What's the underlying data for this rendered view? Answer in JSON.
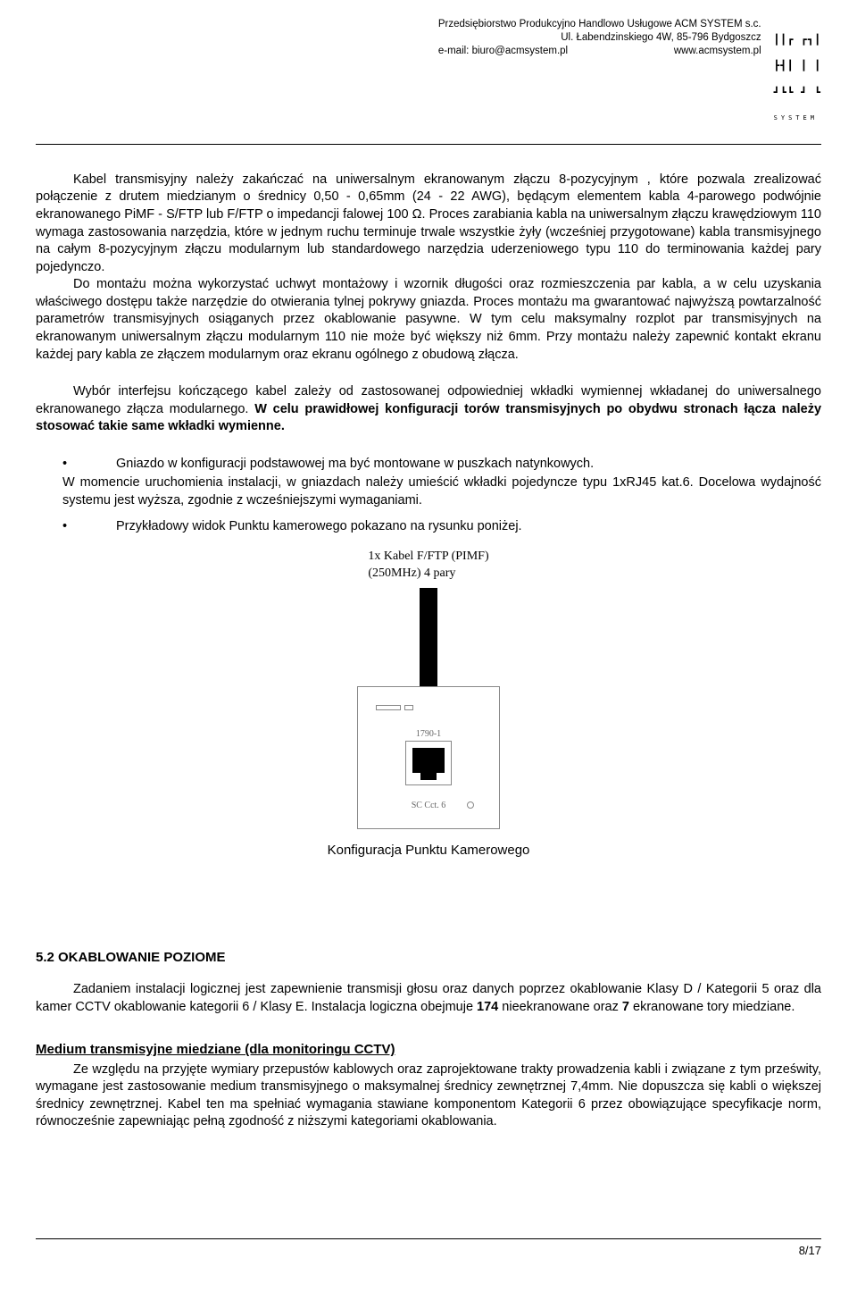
{
  "header": {
    "company": "Przedsiębiorstwo Produkcyjno Handlowo Usługowe ACM SYSTEM s.c.",
    "address": "Ul. Łabendzinskiego 4W, 85-796 Bydgoszcz",
    "email": "e-mail: biuro@acmsystem.pl",
    "web": "www.acmsystem.pl",
    "logo_top": "┃┃┏ ┏┓┃",
    "logo_mid": "┣┫┃ ┃ ┃",
    "logo_bot": "┛┗┗ ┛ ┗",
    "logo_sub": "SYSTEM"
  },
  "body": {
    "p1a": "Kabel transmisyjny należy zakańczać na uniwersalnym ekranowanym złączu 8-pozycyjnym , które pozwala zrealizować połączenie z drutem miedzianym o średnicy 0,50 - 0,65mm (24 - 22 AWG), będącym elementem kabla 4-parowego podwójnie ekranowanego PiMF - S/FTP lub F/FTP o impedancji falowej 100 Ω. Proces zarabiania kabla na uniwersalnym złączu krawędziowym 110 wymaga zastosowania narzędzia, które w jednym ruchu terminuje trwale wszystkie żyły (wcześniej przygotowane) kabla transmisyjnego na całym 8-pozycyjnym złączu modularnym lub standardowego narzędzia uderzeniowego typu 110 do terminowania każdej pary pojedynczo.",
    "p1b": "Do montażu można wykorzystać uchwyt montażowy i wzornik długości oraz rozmieszczenia par kabla, a w celu uzyskania właściwego dostępu także narzędzie do otwierania tylnej pokrywy gniazda. Proces montażu ma gwarantować najwyższą powtarzalność parametrów transmisyjnych osiąganych przez okablowanie pasywne. W tym celu maksymalny rozplot par transmisyjnych na ekranowanym uniwersalnym złączu modularnym 110 nie może być większy niż 6mm. Przy montażu należy zapewnić kontakt ekranu każdej pary kabla ze złączem modularnym oraz ekranu ogólnego z obudową złącza.",
    "p2_pre": "Wybór interfejsu kończącego kabel zależy od zastosowanej odpowiedniej wkładki wymiennej wkładanej do uniwersalnego ekranowanego złącza modularnego. ",
    "p2_bold": "W celu prawidłowej konfiguracji torów transmisyjnych po obydwu stronach łącza należy stosować takie same wkładki wymienne.",
    "bullet1_line1": "Gniazdo w konfiguracji podstawowej ma być montowane w puszkach natynkowych.",
    "bullet1_line2": "W momencie uruchomienia instalacji, w gniazdach należy umieścić wkładki pojedyncze typu 1xRJ45 kat.6. Docelowa wydajność systemu jest wyższa, zgodnie z wcześniejszymi wymaganiami.",
    "bullet2": "Przykładowy widok Punktu kamerowego pokazano na rysunku poniżej.",
    "fig_label_l1": "1x Kabel F/FTP (PIMF)",
    "fig_label_l2": "(250MHz) 4 pary",
    "fig_box_top": "1790-1",
    "fig_box_bottom": "SC Cct. 6",
    "fig_caption": "Konfiguracja  Punktu Kamerowego",
    "h52": "5.2 OKABLOWANIE POZIOME",
    "p52_pre": "Zadaniem instalacji logicznej jest zapewnienie transmisji głosu oraz danych poprzez okablowanie Klasy D / Kategorii 5 oraz dla kamer CCTV okablowanie kategorii 6 / Klasy E. Instalacja logiczna obejmuje ",
    "p52_b1": "174",
    "p52_mid": " nieekranowane oraz ",
    "p52_b2": "7",
    "p52_post": " ekranowane tory miedziane.",
    "h_medium": "Medium transmisyjne miedziane  (dla monitoringu CCTV)",
    "p_medium": "Ze względu na przyjęte wymiary przepustów kablowych oraz zaprojektowane trakty prowadzenia kabli i związane z tym prześwity, wymagane jest zastosowanie medium transmisyjnego o maksymalnej średnicy zewnętrznej 7,4mm. Nie dopuszcza się kabli  o większej średnicy zewnętrznej. Kabel ten ma spełniać wymagania stawiane komponentom Kategorii 6 przez obowiązujące specyfikacje norm, równocześnie zapewniając pełną zgodność z niższymi kategoriami okablowania."
  },
  "footer": {
    "page": "8/17"
  }
}
